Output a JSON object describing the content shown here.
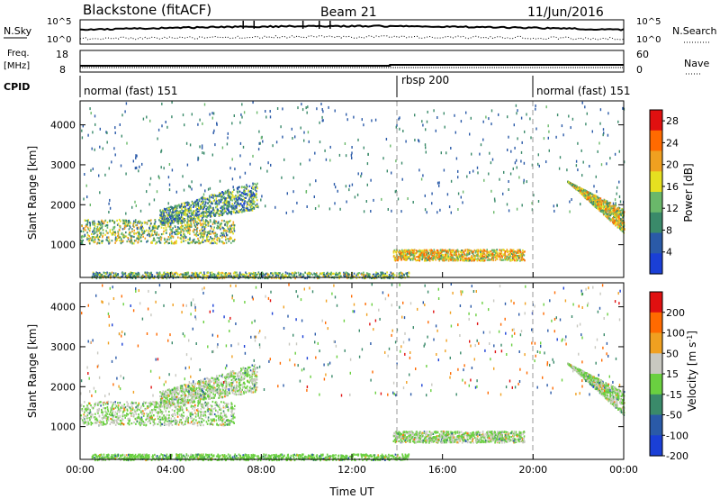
{
  "header": {
    "station": "Blackstone (fitACF)",
    "beam": "Beam 21",
    "date": "11/Jun/2016"
  },
  "top_panels": {
    "nsky_label": "N.Sky",
    "nsky_ticks": [
      "10^5",
      "10^0"
    ],
    "nsearch_label": "N.Search",
    "nsearch_ticks": [
      "10^5",
      "10^0"
    ],
    "freq_label": "Freq.",
    "freq_unit": "[MHz]",
    "freq_ticks": [
      "18",
      "8"
    ],
    "nave_label": "Nave",
    "nave_ticks": [
      "60",
      "0"
    ],
    "cpid_label": "CPID",
    "cpid_segments": [
      {
        "label": "normal (fast) 151",
        "start_h": 0,
        "end_h": 14
      },
      {
        "label": "rbsp 200",
        "start_h": 14,
        "end_h": 20
      },
      {
        "label": "normal (fast) 151",
        "start_h": 20,
        "end_h": 24
      }
    ]
  },
  "chart_data": [
    {
      "type": "heatmap",
      "title": "",
      "xlabel": "Time UT",
      "ylabel": "Slant Range [km]",
      "x_ticks": [
        "00:00",
        "04:00",
        "08:00",
        "12:00",
        "16:00",
        "20:00",
        "00:00"
      ],
      "xlim_hours": [
        0,
        24
      ],
      "ylim_km": [
        180,
        4600
      ],
      "y_ticks": [
        "1000",
        "2000",
        "3000",
        "4000"
      ],
      "colorbar": {
        "label": "Power [dB]",
        "ticks": [
          "4",
          "8",
          "12",
          "16",
          "20",
          "24",
          "28"
        ],
        "range": [
          0,
          30
        ],
        "colors": [
          "#1a3fd6",
          "#2a5aa8",
          "#3a8a6a",
          "#6ab86a",
          "#e6e020",
          "#f0a020",
          "#ff6a00",
          "#e01010"
        ]
      },
      "regions": [
        {
          "name": "early band",
          "t0": 0.0,
          "t1": 6.8,
          "r_start": 1050,
          "r_end": 1650,
          "level": 14
        },
        {
          "name": "early arc rising",
          "t0": 3.5,
          "t1": 7.8,
          "r_start": 1500,
          "r_end": 2500,
          "level": 10
        },
        {
          "name": "mid band",
          "t0": 13.8,
          "t1": 19.6,
          "r_start": 620,
          "r_end": 900,
          "level": 18
        },
        {
          "name": "low ground scatter",
          "t0": 0.5,
          "t1": 14.5,
          "r_start": 180,
          "r_end": 330,
          "level": 12
        },
        {
          "name": "evening arc",
          "t0": 21.5,
          "t1": 24.0,
          "r_start": 1300,
          "r_end": 2600,
          "level": 16
        }
      ]
    },
    {
      "type": "heatmap",
      "title": "",
      "xlabel": "Time UT",
      "ylabel": "Slant Range [km]",
      "x_ticks": [
        "00:00",
        "04:00",
        "08:00",
        "12:00",
        "16:00",
        "20:00",
        "00:00"
      ],
      "xlim_hours": [
        0,
        24
      ],
      "ylim_km": [
        180,
        4600
      ],
      "y_ticks": [
        "1000",
        "2000",
        "3000",
        "4000"
      ],
      "colorbar": {
        "label": "Velocity [m s^-1]",
        "ticks": [
          "200",
          "100",
          "50",
          "15",
          "-15",
          "-50",
          "-100",
          "-200"
        ],
        "range": [
          -250,
          250
        ],
        "colors": [
          "#1a3fd6",
          "#2a5aa8",
          "#3a8a6a",
          "#6ad040",
          "#c8c8c0",
          "#f0a020",
          "#ff6a00",
          "#e01010"
        ]
      },
      "regions": [
        {
          "name": "early band",
          "t0": 0.0,
          "t1": 6.8,
          "r_start": 1050,
          "r_end": 1650,
          "level": 0
        },
        {
          "name": "early arc rising",
          "t0": 3.5,
          "t1": 7.8,
          "r_start": 1500,
          "r_end": 2500,
          "level": 0
        },
        {
          "name": "mid band",
          "t0": 13.8,
          "t1": 19.6,
          "r_start": 620,
          "r_end": 900,
          "level": 0
        },
        {
          "name": "low ground scatter",
          "t0": 0.5,
          "t1": 14.5,
          "r_start": 180,
          "r_end": 330,
          "level": -40
        },
        {
          "name": "evening arc",
          "t0": 21.5,
          "t1": 24.0,
          "r_start": 1300,
          "r_end": 2600,
          "level": 0
        }
      ]
    }
  ]
}
